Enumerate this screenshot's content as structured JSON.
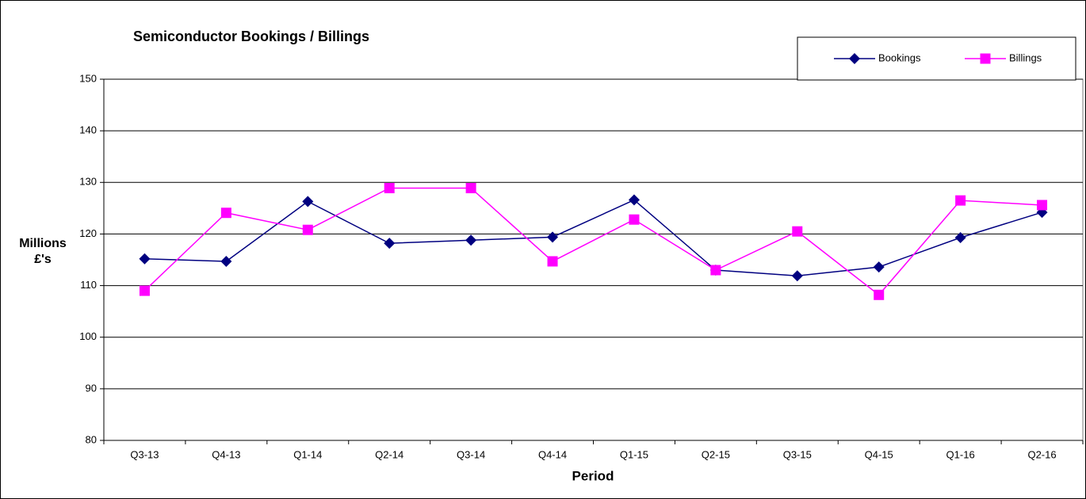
{
  "chart_data": {
    "type": "line",
    "title": "Semiconductor Bookings / Billings",
    "x_label": "Period",
    "y_label": "Millions £'s",
    "categories": [
      "Q3-13",
      "Q4-13",
      "Q1-14",
      "Q2-14",
      "Q3-14",
      "Q4-14",
      "Q1-15",
      "Q2-15",
      "Q3-15",
      "Q4-15",
      "Q1-16",
      "Q2-16"
    ],
    "series": [
      {
        "name": "Bookings",
        "color": "#000080",
        "marker": "diamond",
        "values": [
          115.2,
          114.7,
          126.3,
          118.2,
          118.8,
          119.4,
          126.6,
          113.0,
          111.9,
          113.6,
          119.3,
          124.2
        ]
      },
      {
        "name": "Billings",
        "color": "#ff00ff",
        "marker": "square",
        "values": [
          109.0,
          124.1,
          120.8,
          128.9,
          128.9,
          114.7,
          122.8,
          113.0,
          120.5,
          108.2,
          126.5,
          125.6
        ]
      }
    ],
    "ylim": [
      80,
      150
    ],
    "yticks": [
      80,
      90,
      100,
      110,
      120,
      130,
      140,
      150
    ],
    "grid": true,
    "legend": "top-right"
  }
}
